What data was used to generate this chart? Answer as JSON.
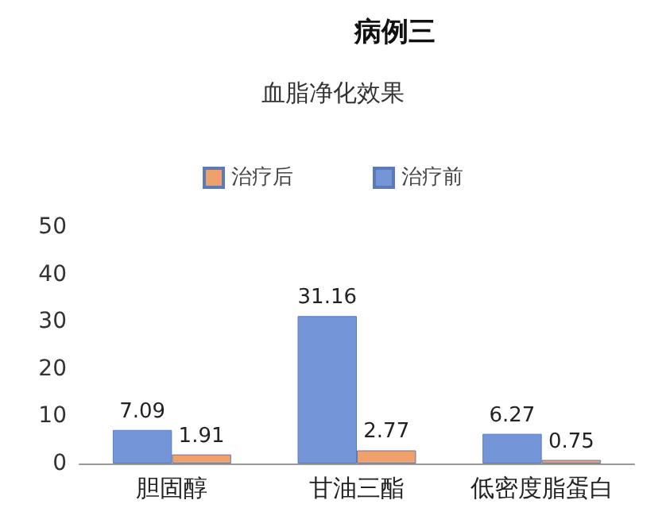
{
  "chart_data": {
    "type": "bar",
    "title": "血脂净化效果",
    "annotations": [
      "病例三"
    ],
    "categories": [
      "胆固醇",
      "甘油三酯",
      "低密度脂蛋白"
    ],
    "series": [
      {
        "name": "治疗前",
        "color": "#7496d8",
        "values": [
          7.09,
          31.16,
          6.27
        ]
      },
      {
        "name": "治疗后",
        "color": "#f0a06a",
        "values": [
          1.91,
          2.77,
          0.75
        ]
      }
    ],
    "ylim": [
      0,
      50
    ],
    "yticks": [
      0,
      10,
      20,
      30,
      40,
      50
    ],
    "grid": false,
    "legend": "top",
    "data_labels": true
  }
}
